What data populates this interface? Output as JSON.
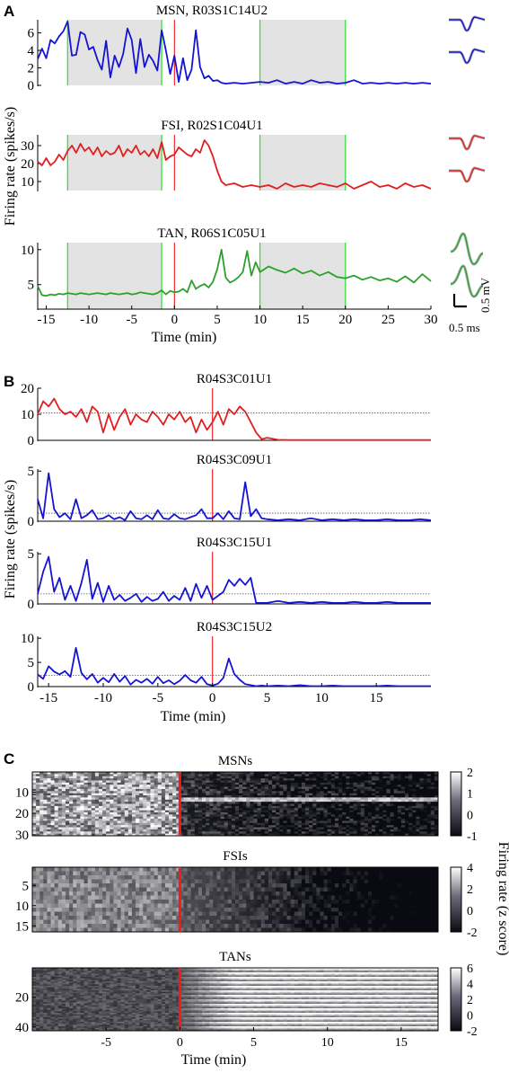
{
  "figure": {
    "panel_letters": [
      "A",
      "B",
      "C"
    ]
  },
  "chart_data": [
    {
      "panel": "A",
      "type": "line",
      "ylabel": "Firing rate (spikes/s)",
      "xlabel": "Time (min)",
      "xlim": [
        -16,
        30
      ],
      "xticks": [
        -15,
        -10,
        -5,
        0,
        5,
        10,
        15,
        20,
        25,
        30
      ],
      "shaded_intervals": [
        [
          -12.5,
          -1.5
        ],
        [
          10,
          20
        ]
      ],
      "shade_color": "#e3e3e3",
      "green_lines": [
        -12.5,
        -1.5,
        10,
        20
      ],
      "red_line": 0,
      "scale_bar": {
        "amplitude": "0.5 mV",
        "time": "0.5 ms"
      },
      "subplots": [
        {
          "title": "MSN, R03S1C14U2",
          "color": "#1414d2",
          "ylim": [
            0,
            7.5
          ],
          "yticks": [
            0,
            2,
            4,
            6
          ],
          "x": [
            -16,
            -15.5,
            -15,
            -14.5,
            -14,
            -13.5,
            -13,
            -12.5,
            -12,
            -11.5,
            -11,
            -10.5,
            -10,
            -9.5,
            -9,
            -8.5,
            -8,
            -7.5,
            -7,
            -6.5,
            -6,
            -5.5,
            -5,
            -4.5,
            -4,
            -3.5,
            -3,
            -2.5,
            -2,
            -1.5,
            -1,
            -0.5,
            0,
            0.5,
            1,
            1.5,
            2,
            2.5,
            3,
            3.5,
            4,
            4.5,
            5,
            5.5,
            6,
            7,
            8,
            9,
            10,
            11,
            12,
            13,
            14,
            15,
            16,
            17,
            18,
            19,
            20,
            21,
            22,
            23,
            24,
            25,
            26,
            27,
            28,
            29,
            30
          ],
          "y": [
            3.0,
            4.2,
            3.1,
            5.2,
            4.8,
            5.6,
            6.2,
            7.3,
            3.4,
            3.5,
            6.1,
            5.8,
            4.1,
            4.4,
            2.9,
            1.8,
            5.1,
            0.9,
            3.4,
            2.1,
            3.6,
            6.5,
            5.2,
            1.4,
            5.3,
            2.1,
            3.5,
            2.8,
            1.7,
            6.3,
            4.0,
            1.3,
            3.4,
            0.4,
            3.1,
            0.6,
            1.8,
            6.3,
            2.1,
            0.8,
            1.1,
            0.5,
            0.6,
            0.3,
            0.2,
            0.3,
            0.2,
            0.3,
            0.4,
            0.3,
            0.6,
            0.2,
            0.4,
            0.2,
            0.6,
            0.3,
            0.4,
            0.2,
            0.3,
            0.6,
            0.2,
            0.3,
            0.2,
            0.3,
            0.2,
            0.3,
            0.2,
            0.3,
            0.2
          ]
        },
        {
          "title": "FSI, R02S1C04U1",
          "color": "#e02020",
          "ylim": [
            5,
            36
          ],
          "yticks": [
            10,
            20,
            30
          ],
          "x": [
            -16,
            -15.5,
            -15,
            -14.5,
            -14,
            -13.5,
            -13,
            -12.5,
            -12,
            -11.5,
            -11,
            -10.5,
            -10,
            -9.5,
            -9,
            -8.5,
            -8,
            -7.5,
            -7,
            -6.5,
            -6,
            -5.5,
            -5,
            -4.5,
            -4,
            -3.5,
            -3,
            -2.5,
            -2,
            -1.5,
            -1,
            -0.5,
            0,
            0.5,
            1,
            1.5,
            2,
            2.5,
            3,
            3.5,
            4,
            4.5,
            5,
            5.5,
            6,
            7,
            8,
            9,
            10,
            11,
            12,
            13,
            14,
            15,
            16,
            17,
            18,
            19,
            20,
            21,
            22,
            23,
            24,
            25,
            26,
            27,
            28,
            29,
            30
          ],
          "y": [
            21,
            19,
            23,
            19,
            21,
            25,
            22,
            27,
            30,
            26,
            31,
            27,
            29,
            25,
            29,
            24,
            27,
            25,
            26,
            30,
            24,
            28,
            26,
            30,
            25,
            27,
            24,
            28,
            23,
            32,
            22,
            24,
            25,
            29,
            27,
            25,
            24,
            28,
            26,
            33,
            30,
            24,
            16,
            10,
            8,
            9,
            7,
            8,
            7,
            8,
            6,
            9,
            7,
            8,
            7,
            9,
            8,
            7,
            9,
            6,
            8,
            10,
            7,
            8,
            6,
            9,
            7,
            8,
            6
          ]
        },
        {
          "title": "TAN, R06S1C05U1",
          "color": "#2ca02c",
          "ylim": [
            1.5,
            11
          ],
          "yticks": [
            5,
            10
          ],
          "x": [
            -16,
            -15.5,
            -15,
            -14.5,
            -14,
            -13.5,
            -13,
            -12.5,
            -12,
            -11.5,
            -11,
            -10.5,
            -10,
            -9.5,
            -9,
            -8.5,
            -8,
            -7.5,
            -7,
            -6.5,
            -6,
            -5.5,
            -5,
            -4.5,
            -4,
            -3.5,
            -3,
            -2.5,
            -2,
            -1.5,
            -1,
            -0.5,
            0,
            0.5,
            1,
            1.5,
            2,
            2.5,
            3,
            3.5,
            4,
            4.5,
            5,
            5.5,
            6,
            6.5,
            7,
            7.5,
            8,
            8.5,
            9,
            9.5,
            10,
            11,
            12,
            13,
            14,
            15,
            16,
            17,
            18,
            19,
            20,
            21,
            22,
            23,
            24,
            25,
            26,
            27,
            28,
            29,
            30
          ],
          "y": [
            4.8,
            3.5,
            3.4,
            3.6,
            3.5,
            3.7,
            3.6,
            3.8,
            3.7,
            3.6,
            3.8,
            3.7,
            3.6,
            3.7,
            3.8,
            3.7,
            3.6,
            3.8,
            3.7,
            3.6,
            3.7,
            3.8,
            3.6,
            3.7,
            3.9,
            3.8,
            3.7,
            3.6,
            3.8,
            4.2,
            3.6,
            4.1,
            3.9,
            4.0,
            4.4,
            3.9,
            5.6,
            4.4,
            4.8,
            5.1,
            4.6,
            5.4,
            7.2,
            10.0,
            6.0,
            5.3,
            5.6,
            6.1,
            6.8,
            9.8,
            6.3,
            8.2,
            6.8,
            7.6,
            7.1,
            6.7,
            7.3,
            6.6,
            7.0,
            6.3,
            6.8,
            6.1,
            5.9,
            6.3,
            5.7,
            6.1,
            5.6,
            5.9,
            5.4,
            6.2,
            5.3,
            6.5,
            5.5
          ]
        }
      ]
    },
    {
      "panel": "B",
      "type": "line",
      "ylabel": "Firing rate (spikes/s)",
      "xlabel": "Time (min)",
      "xlim": [
        -16,
        20
      ],
      "xticks": [
        -15,
        -10,
        -5,
        0,
        5,
        10,
        15
      ],
      "red_line": 0,
      "subplots": [
        {
          "title": "R04S3C01U1",
          "color": "#e02020",
          "ylim": [
            0,
            20
          ],
          "yticks": [
            0,
            10,
            20
          ],
          "baseline": 10.5,
          "x": [
            -16,
            -15.5,
            -15,
            -14.5,
            -14,
            -13.5,
            -13,
            -12.5,
            -12,
            -11.5,
            -11,
            -10.5,
            -10,
            -9.5,
            -9,
            -8.5,
            -8,
            -7.5,
            -7,
            -6.5,
            -6,
            -5.5,
            -5,
            -4.5,
            -4,
            -3.5,
            -3,
            -2.5,
            -2,
            -1.5,
            -1,
            -0.5,
            0,
            0.5,
            1,
            1.5,
            2,
            2.5,
            3,
            3.5,
            4,
            4.5,
            5,
            6,
            7,
            8,
            9,
            10,
            11,
            12,
            13,
            14,
            15,
            16,
            17,
            18,
            19,
            20
          ],
          "y": [
            10,
            15,
            13,
            16,
            12,
            10,
            11,
            9,
            12,
            7,
            13,
            11,
            3,
            10,
            4,
            9,
            12,
            6,
            10,
            8,
            7,
            11,
            9,
            6,
            10,
            8,
            11,
            7,
            9,
            3,
            8,
            4,
            7,
            11,
            6,
            12,
            10,
            13,
            11,
            7,
            3,
            0.5,
            1,
            0.2,
            0.1,
            0.1,
            0.1,
            0.1,
            0.1,
            0.1,
            0.1,
            0.1,
            0.1,
            0.1,
            0.1,
            0.1,
            0.1,
            0.1
          ]
        },
        {
          "title": "R04S3C09U1",
          "color": "#1414d2",
          "ylim": [
            0,
            5.2
          ],
          "yticks": [
            0,
            5
          ],
          "baseline": 0.8,
          "x": [
            -16,
            -15.5,
            -15,
            -14.5,
            -14,
            -13.5,
            -13,
            -12.5,
            -12,
            -11.5,
            -11,
            -10.5,
            -10,
            -9.5,
            -9,
            -8.5,
            -8,
            -7.5,
            -7,
            -6.5,
            -6,
            -5.5,
            -5,
            -4.5,
            -4,
            -3.5,
            -3,
            -2.5,
            -2,
            -1.5,
            -1,
            -0.5,
            0,
            0.5,
            1,
            1.5,
            2,
            2.5,
            3,
            3.5,
            4,
            4.5,
            5,
            6,
            7,
            8,
            9,
            10,
            11,
            12,
            13,
            14,
            15,
            16,
            17,
            18,
            19,
            20
          ],
          "y": [
            2.2,
            0.3,
            4.8,
            1.2,
            0.4,
            0.8,
            0.2,
            2.2,
            0.3,
            0.6,
            1.1,
            0.2,
            0.3,
            0.6,
            0.2,
            0.4,
            0.1,
            1.0,
            0.3,
            0.2,
            0.6,
            0.2,
            1.1,
            0.3,
            0.2,
            0.7,
            0.3,
            0.2,
            0.4,
            0.6,
            1.2,
            0.3,
            0.3,
            0.8,
            0.2,
            1.0,
            0.3,
            0.2,
            3.9,
            0.5,
            1.2,
            0.3,
            0.2,
            0.1,
            0.2,
            0.1,
            0.3,
            0.1,
            0.2,
            0.1,
            0.2,
            0.1,
            0.1,
            0.2,
            0.1,
            0.1,
            0.2,
            0.1
          ]
        },
        {
          "title": "R04S3C15U1",
          "color": "#1414d2",
          "ylim": [
            0,
            5.2
          ],
          "yticks": [
            0,
            5
          ],
          "baseline": 1.0,
          "x": [
            -16,
            -15.5,
            -15,
            -14.5,
            -14,
            -13.5,
            -13,
            -12.5,
            -12,
            -11.5,
            -11,
            -10.5,
            -10,
            -9.5,
            -9,
            -8.5,
            -8,
            -7.5,
            -7,
            -6.5,
            -6,
            -5.5,
            -5,
            -4.5,
            -4,
            -3.5,
            -3,
            -2.5,
            -2,
            -1.5,
            -1,
            -0.5,
            0,
            0.5,
            1,
            1.5,
            2,
            2.5,
            3,
            3.5,
            4,
            4.5,
            5,
            6,
            7,
            8,
            9,
            10,
            11,
            12,
            13,
            14,
            15,
            16,
            17,
            18,
            19,
            20
          ],
          "y": [
            1.0,
            3.2,
            4.7,
            1.2,
            2.6,
            0.4,
            1.8,
            0.3,
            2.1,
            4.4,
            0.5,
            2.1,
            0.2,
            1.8,
            0.4,
            0.9,
            0.3,
            0.6,
            1.0,
            0.2,
            0.7,
            0.3,
            0.5,
            1.2,
            0.3,
            0.8,
            0.4,
            1.6,
            0.3,
            2.0,
            0.6,
            1.8,
            0.4,
            0.8,
            1.2,
            2.4,
            1.8,
            2.5,
            1.9,
            2.6,
            0.1,
            0.1,
            0.1,
            0.3,
            0.1,
            0.2,
            0.1,
            0.2,
            0.1,
            0.1,
            0.2,
            0.1,
            0.1,
            0.2,
            0.1,
            0.1,
            0.1,
            0.1
          ]
        },
        {
          "title": "R04S3C15U2",
          "color": "#1414d2",
          "ylim": [
            0,
            10.4
          ],
          "yticks": [
            0,
            5,
            10
          ],
          "baseline": 2.3,
          "x": [
            -16,
            -15.5,
            -15,
            -14.5,
            -14,
            -13.5,
            -13,
            -12.5,
            -12,
            -11.5,
            -11,
            -10.5,
            -10,
            -9.5,
            -9,
            -8.5,
            -8,
            -7.5,
            -7,
            -6.5,
            -6,
            -5.5,
            -5,
            -4.5,
            -4,
            -3.5,
            -3,
            -2.5,
            -2,
            -1.5,
            -1,
            -0.5,
            0,
            0.5,
            1,
            1.5,
            2,
            2.5,
            3,
            3.5,
            4,
            4.5,
            5,
            6,
            7,
            8,
            9,
            10,
            11,
            12,
            13,
            14,
            15,
            16,
            17,
            18,
            19,
            20
          ],
          "y": [
            2.5,
            1.6,
            4.2,
            3.1,
            2.5,
            3.2,
            2.0,
            8.0,
            2.8,
            1.5,
            2.6,
            0.8,
            1.8,
            0.9,
            2.6,
            1.0,
            2.2,
            0.4,
            1.4,
            0.8,
            1.6,
            0.6,
            2.0,
            0.7,
            1.3,
            0.5,
            1.2,
            2.4,
            1.3,
            0.8,
            2.0,
            0.5,
            0.2,
            0.6,
            1.8,
            5.8,
            2.6,
            1.4,
            0.5,
            0.3,
            0.1,
            0.2,
            0.1,
            0.2,
            0.1,
            0.3,
            0.1,
            0.1,
            0.2,
            0.1,
            0.1,
            0.1,
            0.1,
            0.2,
            0.1,
            0.1,
            0.1,
            0.1
          ]
        }
      ]
    },
    {
      "panel": "C",
      "type": "heatmap",
      "xlabel": "Time (min)",
      "xlim": [
        -10,
        17.5
      ],
      "xticks": [
        -5,
        0,
        5,
        10,
        15
      ],
      "colorbar_label": "Firing rate (z score)",
      "red_line": 0,
      "subplots": [
        {
          "title": "MSNs",
          "rows": 30,
          "yticks": [
            10,
            20,
            30
          ],
          "clim": [
            -1,
            2
          ],
          "cbar_ticks": [
            2,
            1,
            0,
            -1
          ],
          "pattern": "msn"
        },
        {
          "title": "FSIs",
          "rows": 16,
          "yticks": [
            5,
            10,
            15
          ],
          "clim": [
            -2,
            4
          ],
          "cbar_ticks": [
            4,
            2,
            0,
            -2
          ],
          "pattern": "fsi"
        },
        {
          "title": "TANs",
          "rows": 42,
          "yticks": [
            20,
            40
          ],
          "clim": [
            -2,
            6
          ],
          "cbar_ticks": [
            6,
            4,
            2,
            0,
            -2
          ],
          "pattern": "tan"
        }
      ]
    }
  ]
}
